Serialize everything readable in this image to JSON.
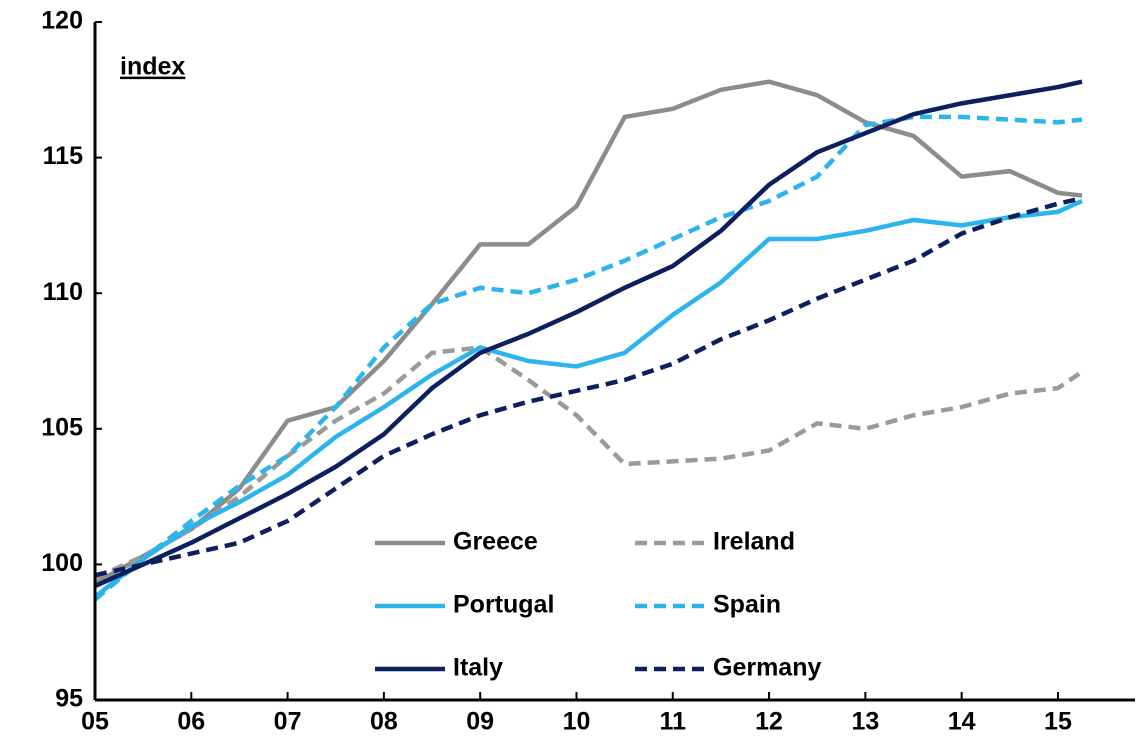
{
  "chart_data": {
    "type": "line",
    "annotations": [
      "index"
    ],
    "x": [
      2005,
      2005.5,
      2006,
      2006.5,
      2007,
      2007.5,
      2008,
      2008.5,
      2009,
      2009.5,
      2010,
      2010.5,
      2011,
      2011.5,
      2012,
      2012.5,
      2013,
      2013.5,
      2014,
      2014.5,
      2015,
      2015.25
    ],
    "xlim": [
      2005,
      2015.8
    ],
    "xticks": [
      {
        "value": 2005,
        "label": "05"
      },
      {
        "value": 2006,
        "label": "06"
      },
      {
        "value": 2007,
        "label": "07"
      },
      {
        "value": 2008,
        "label": "08"
      },
      {
        "value": 2009,
        "label": "09"
      },
      {
        "value": 2010,
        "label": "10"
      },
      {
        "value": 2011,
        "label": "11"
      },
      {
        "value": 2012,
        "label": "12"
      },
      {
        "value": 2013,
        "label": "13"
      },
      {
        "value": 2014,
        "label": "14"
      },
      {
        "value": 2015,
        "label": "15"
      }
    ],
    "ylim": [
      95,
      120
    ],
    "yticks": [
      95,
      100,
      105,
      110,
      115,
      120
    ],
    "grid": false,
    "series": [
      {
        "name": "Greece",
        "color": "#8c8c8c",
        "dashed": false,
        "values": [
          99.3,
          100.3,
          101.3,
          102.8,
          105.3,
          105.8,
          107.5,
          109.6,
          111.8,
          111.8,
          113.2,
          116.5,
          116.8,
          117.5,
          117.8,
          117.3,
          116.3,
          115.8,
          114.3,
          114.5,
          113.7,
          113.6
        ]
      },
      {
        "name": "Ireland",
        "color": "#9a9a9a",
        "dashed": true,
        "values": [
          99.5,
          100.3,
          101.3,
          102.5,
          104,
          105.3,
          106.3,
          107.8,
          108,
          106.8,
          105.5,
          103.7,
          103.8,
          103.9,
          104.2,
          105.2,
          105,
          105.5,
          105.8,
          106.3,
          106.5,
          107.1
        ]
      },
      {
        "name": "Portugal",
        "color": "#2bb5ec",
        "dashed": false,
        "values": [
          98.8,
          100.2,
          101.4,
          102.3,
          103.3,
          104.7,
          105.8,
          107,
          108,
          107.5,
          107.3,
          107.8,
          109.2,
          110.4,
          112,
          112,
          112.3,
          112.7,
          112.5,
          112.8,
          113,
          113.4
        ]
      },
      {
        "name": "Spain",
        "color": "#2bb5ec",
        "dashed": true,
        "values": [
          98.7,
          100.2,
          101.6,
          102.9,
          104,
          105.8,
          108,
          109.6,
          110.2,
          110,
          110.5,
          111.2,
          112,
          112.8,
          113.4,
          114.3,
          116.2,
          116.5,
          116.5,
          116.4,
          116.3,
          116.4
        ]
      },
      {
        "name": "Italy",
        "color": "#0c1f5e",
        "dashed": false,
        "values": [
          99.2,
          100,
          100.8,
          101.7,
          102.6,
          103.6,
          104.8,
          106.5,
          107.8,
          108.5,
          109.3,
          110.2,
          111,
          112.3,
          114,
          115.2,
          115.9,
          116.6,
          117,
          117.3,
          117.6,
          117.8
        ]
      },
      {
        "name": "Germany",
        "color": "#0c1f5e",
        "dashed": true,
        "values": [
          99.6,
          100,
          100.4,
          100.8,
          101.6,
          102.8,
          104,
          104.8,
          105.5,
          106,
          106.4,
          106.8,
          107.4,
          108.3,
          109,
          109.8,
          110.5,
          111.2,
          112.2,
          112.8,
          113.3,
          113.5
        ]
      }
    ]
  }
}
